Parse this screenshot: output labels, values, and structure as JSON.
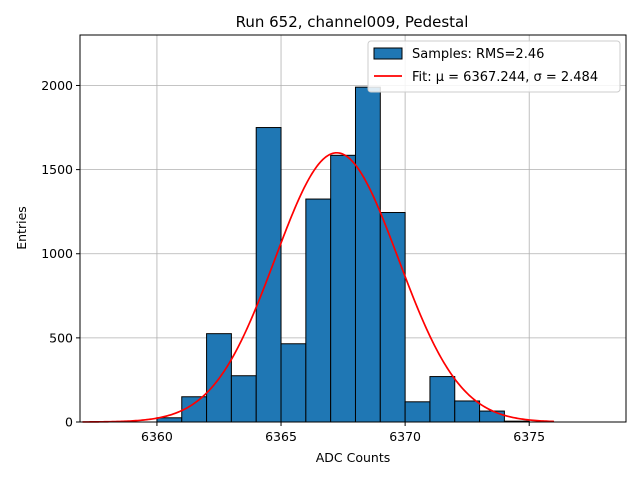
{
  "chart_data": {
    "type": "bar",
    "title": "Run 652, channel009, Pedestal",
    "xlabel": "ADC Counts",
    "ylabel": "Entries",
    "xlim": [
      6356.9,
      6378.9
    ],
    "ylim": [
      0,
      2300
    ],
    "xticks": [
      6360,
      6365,
      6370,
      6375
    ],
    "yticks": [
      0,
      500,
      1000,
      1500,
      2000
    ],
    "grid": true,
    "legend_position": "top-right",
    "bar_color": "#1f77b4",
    "fit_color": "#ff0000",
    "bins": [
      {
        "x0": 6360,
        "x1": 6361,
        "value": 25
      },
      {
        "x0": 6361,
        "x1": 6362,
        "value": 150
      },
      {
        "x0": 6362,
        "x1": 6363,
        "value": 525
      },
      {
        "x0": 6363,
        "x1": 6364,
        "value": 275
      },
      {
        "x0": 6364,
        "x1": 6365,
        "value": 1750
      },
      {
        "x0": 6365,
        "x1": 6366,
        "value": 465
      },
      {
        "x0": 6366,
        "x1": 6367,
        "value": 1325
      },
      {
        "x0": 6367,
        "x1": 6368,
        "value": 1585
      },
      {
        "x0": 6368,
        "x1": 6369,
        "value": 1990
      },
      {
        "x0": 6369,
        "x1": 6370,
        "value": 1245
      },
      {
        "x0": 6370,
        "x1": 6371,
        "value": 120
      },
      {
        "x0": 6371,
        "x1": 6372,
        "value": 270
      },
      {
        "x0": 6372,
        "x1": 6373,
        "value": 125
      },
      {
        "x0": 6373,
        "x1": 6374,
        "value": 65
      },
      {
        "x0": 6374,
        "x1": 6375,
        "value": 5
      }
    ],
    "fit": {
      "mu": 6367.244,
      "sigma": 2.484,
      "amplitude": 1600,
      "x_range": [
        6357.0,
        6376.0
      ]
    },
    "series": [
      {
        "name": "Samples: RMS=2.46",
        "kind": "histogram"
      },
      {
        "name": "Fit: μ = 6367.244, σ = 2.484",
        "kind": "line"
      }
    ]
  }
}
